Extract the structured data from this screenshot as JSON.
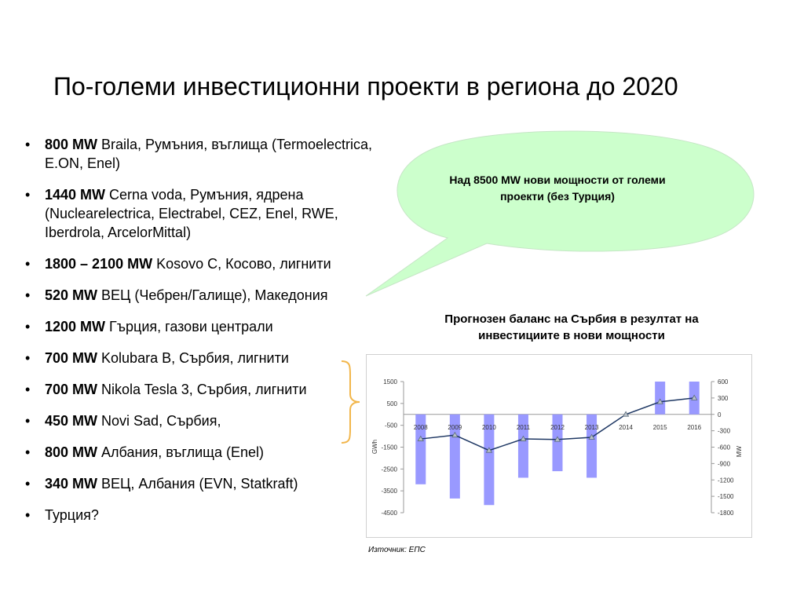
{
  "title": "По-големи инвестиционни проекти в региона до 2020",
  "bullets": [
    {
      "bold": "800 MW",
      "text": " Braila, Румъния, въглища (Termoelectrica, E.ON, Enel)"
    },
    {
      "bold": "1440 MW",
      "text": " Cerna voda, Румъния, ядрена (Nuclearelectrica, Electrabel, CEZ, Enel, RWE, Iberdrola, ArcelorMittal)"
    },
    {
      "bold": "1800 – 2100 MW",
      "text": " Kosovo C, Косово, лигнити"
    },
    {
      "bold": "520 MW",
      "text": " ВЕЦ (Чебрен/Галище), Македония"
    },
    {
      "bold": "1200 MW",
      "text": " Гърция, газови централи"
    },
    {
      "bold": "700 MW",
      "text": " Kolubara B, Сърбия, лигнити"
    },
    {
      "bold": "700 MW",
      "text": " Nikola Tesla 3, Сърбия, лигнити"
    },
    {
      "bold": "450 MW",
      "text": " Novi Sad, Сърбия,"
    },
    {
      "bold": "800 MW",
      "text": " Албания, въглища (Enel)"
    },
    {
      "bold": "340 MW",
      "text": " ВЕЦ, Албания (EVN, Statkraft)"
    },
    {
      "bold": "",
      "text": "Турция?"
    }
  ],
  "callout": {
    "text": "Над 8500 MW нови мощности от големи проекти (без Турция)"
  },
  "chart_title": "Прогнозен баланс на Сърбия в резултат на инвестициите в нови мощности",
  "source": "Източник: ЕПС",
  "colors": {
    "bars": "#9999ff",
    "line": "#1f3864",
    "callout_fill": "#ccffcc",
    "brace": "#f2b64b"
  },
  "chart_data": {
    "type": "bar",
    "categories": [
      "2008",
      "2009",
      "2010",
      "2011",
      "2012",
      "2013",
      "2014",
      "2015",
      "2016"
    ],
    "series": [
      {
        "name": "GWh",
        "axis": "left",
        "type": "bar",
        "values": [
          -3200,
          -3850,
          -4150,
          -2900,
          -2600,
          -2900,
          0,
          1500,
          1500
        ]
      },
      {
        "name": "MW",
        "axis": "right",
        "type": "line",
        "values": [
          -450,
          -380,
          -660,
          -450,
          -460,
          -420,
          0,
          230,
          300
        ]
      }
    ],
    "y_left": {
      "label": "GWh",
      "ylim": [
        -4500,
        1500
      ],
      "ticks": [
        1500,
        500,
        -500,
        -1500,
        -2500,
        -3500,
        -4500
      ]
    },
    "y_right": {
      "label": "MW",
      "ylim": [
        -1800,
        600
      ],
      "ticks": [
        600,
        300,
        0,
        -300,
        -600,
        -900,
        -1200,
        -1500,
        -1800
      ]
    },
    "grid": false,
    "legend": "none"
  }
}
